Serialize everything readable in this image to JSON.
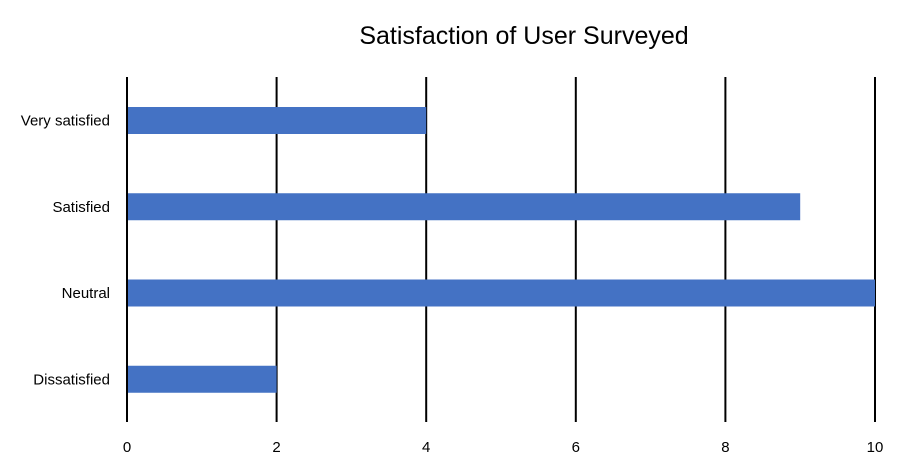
{
  "chart_data": {
    "type": "bar",
    "orientation": "horizontal",
    "title": "Satisfaction of User Surveyed",
    "categories": [
      "Very satisfied",
      "Satisfied",
      "Neutral",
      "Dissatisfied"
    ],
    "values": [
      4,
      9,
      10,
      2
    ],
    "xlabel": "",
    "ylabel": "",
    "xlim": [
      0,
      10
    ],
    "x_ticks": [
      "0",
      "2",
      "4",
      "6",
      "8",
      "10"
    ],
    "grid": true,
    "legend": "none",
    "bar_color": "#4472C4",
    "grid_color": "#000000"
  }
}
